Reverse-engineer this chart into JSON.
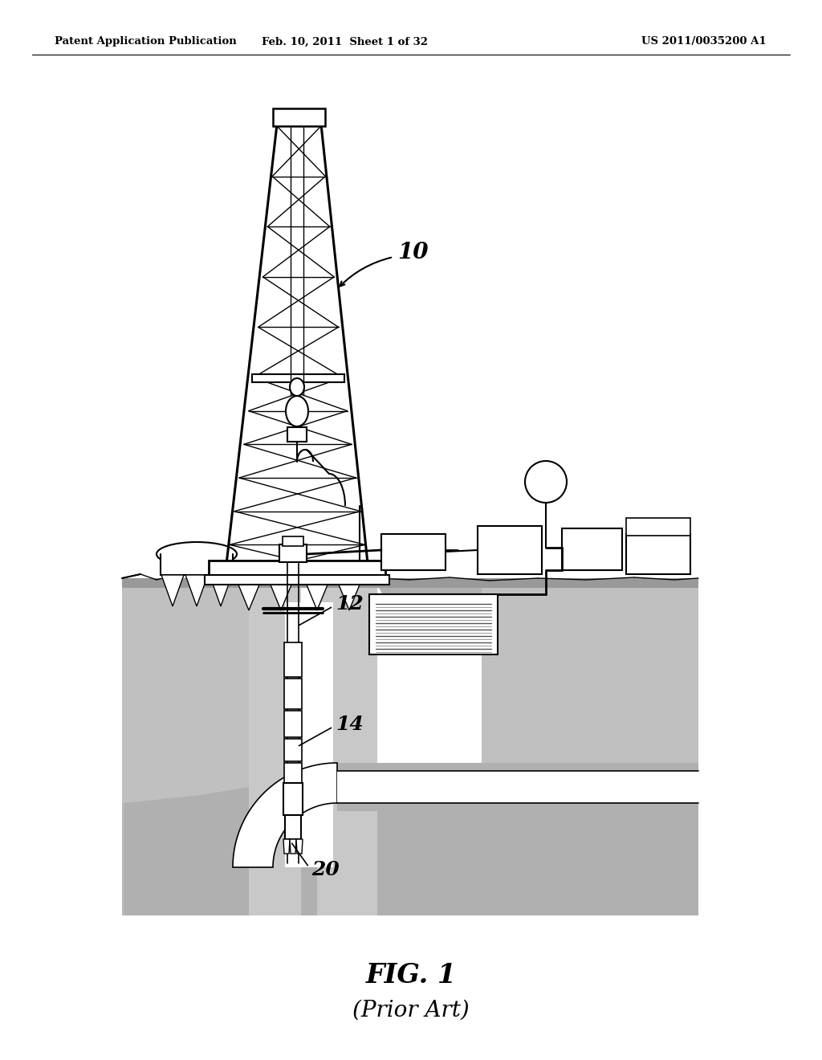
{
  "header_left": "Patent Application Publication",
  "header_mid": "Feb. 10, 2011  Sheet 1 of 32",
  "header_right": "US 2011/0035200 A1",
  "fig_label": "FIG. 1",
  "fig_sublabel": "(Prior Art)",
  "bg": "#ffffff",
  "ground_color": "#aaaaaa",
  "ground_dark": "#888888"
}
